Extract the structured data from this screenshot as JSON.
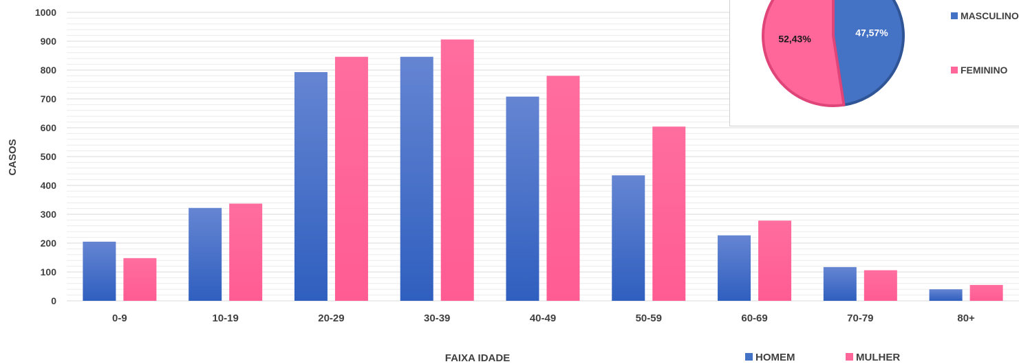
{
  "chart_data": [
    {
      "type": "bar",
      "xlabel": "FAIXA IDADE",
      "ylabel": "CASOS",
      "ylim": [
        0,
        1000
      ],
      "yticks": [
        0,
        100,
        200,
        300,
        400,
        500,
        600,
        700,
        800,
        900,
        1000
      ],
      "minor_grid_step": 20,
      "grid": true,
      "legend_position": "bottom-right",
      "categories": [
        "0-9",
        "10-19",
        "20-29",
        "30-39",
        "40-49",
        "50-59",
        "60-69",
        "70-79",
        "80+"
      ],
      "series": [
        {
          "name": "HOMEM",
          "color": "#4472C4",
          "values": [
            205,
            322,
            793,
            846,
            708,
            435,
            227,
            117,
            40
          ]
        },
        {
          "name": "MULHER",
          "color": "#FF6699",
          "values": [
            148,
            337,
            846,
            906,
            780,
            604,
            278,
            106,
            55
          ]
        }
      ]
    },
    {
      "type": "pie",
      "legend_position": "right",
      "slices": [
        {
          "name": "MASCULINO",
          "label": "47,57%",
          "value": 47.57,
          "color": "#4472C4"
        },
        {
          "name": "FEMININO",
          "label": "52,43%",
          "value": 52.43,
          "color": "#FF6699"
        }
      ]
    }
  ]
}
